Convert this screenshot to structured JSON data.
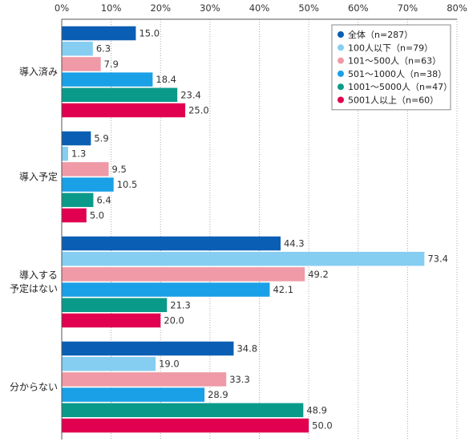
{
  "chart_data": {
    "type": "bar",
    "orientation": "horizontal",
    "xlim": [
      0,
      80
    ],
    "x_ticks": [
      "0%",
      "10%",
      "20%",
      "30%",
      "40%",
      "50%",
      "60%",
      "70%",
      "80%"
    ],
    "grid": "vertical dotted",
    "legend_position": "top-right",
    "categories": [
      {
        "lines": [
          "導入済み"
        ]
      },
      {
        "lines": [
          "導入予定"
        ]
      },
      {
        "lines": [
          "導入する",
          "予定はない"
        ]
      },
      {
        "lines": [
          "分からない"
        ]
      }
    ],
    "series": [
      {
        "name": "全体（n=287）",
        "color": "#0a5fb4",
        "values": [
          15.0,
          5.9,
          44.3,
          34.8
        ]
      },
      {
        "name": "100人以下（n=79）",
        "color": "#86cdf2",
        "values": [
          6.3,
          1.3,
          73.4,
          19.0
        ]
      },
      {
        "name": "101〜500人（n=63）",
        "color": "#ef9aa6",
        "values": [
          7.9,
          9.5,
          49.2,
          33.3
        ]
      },
      {
        "name": "501〜1000人（n=38）",
        "color": "#1aa0e6",
        "values": [
          18.4,
          10.5,
          42.1,
          28.9
        ]
      },
      {
        "name": "1001〜5000人（n=47）",
        "color": "#0a9a8a",
        "values": [
          23.4,
          6.4,
          21.3,
          48.9
        ]
      },
      {
        "name": "5001人以上（n=60）",
        "color": "#e0004f",
        "values": [
          25.0,
          5.0,
          20.0,
          50.0
        ]
      }
    ]
  }
}
